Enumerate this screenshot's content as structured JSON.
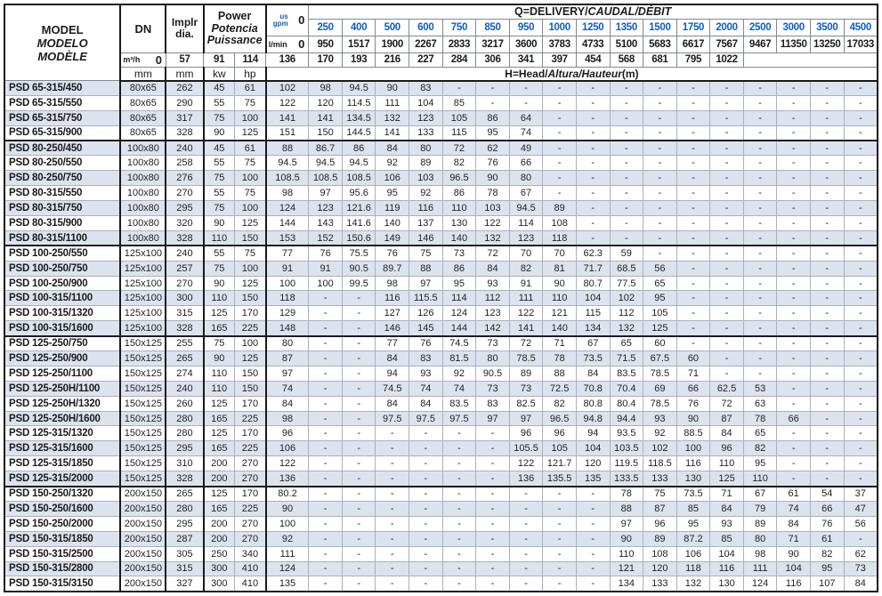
{
  "colors": {
    "accent_blue": "#0e5ec2",
    "stripe": "#dde3ee",
    "grid_dark": "#1a1a1a",
    "grid_light": "#a9b0bf"
  },
  "table": {
    "header": {
      "model": {
        "line1": "MODEL",
        "line2": "MODELO",
        "line3": "MODÈLE"
      },
      "dn": {
        "label": "DN",
        "unit": "mm"
      },
      "impeller": {
        "label1": "Implr",
        "label2": "dia.",
        "unit": "mm"
      },
      "power": {
        "line1": "Power",
        "line2": "Potencia",
        "line3": "Puissance",
        "unit_kw": "kw",
        "unit_hp": "hp"
      },
      "q_title": {
        "plain": "Q=DELIVERY/",
        "italic": "CAUDAL/DÉBIT"
      },
      "h_title": {
        "plain": "H=Head/",
        "italic": "Altura/Hauteur",
        "suffix": "(m)"
      },
      "flow_units": [
        {
          "label": "us gpm",
          "zero": "0"
        },
        {
          "label": "l/min",
          "zero": "0"
        },
        {
          "label": "m³/h",
          "zero": "0"
        }
      ]
    },
    "flow_columns": {
      "us_gpm": [
        "250",
        "400",
        "500",
        "600",
        "750",
        "850",
        "950",
        "1000",
        "1250",
        "1350",
        "1500",
        "1750",
        "2000",
        "2500",
        "3000",
        "3500",
        "4500"
      ],
      "l_min": [
        "950",
        "1517",
        "1900",
        "2267",
        "2833",
        "3217",
        "3600",
        "3783",
        "4733",
        "5100",
        "5683",
        "6617",
        "7567",
        "9467",
        "11350",
        "13250",
        "17033"
      ],
      "m3_h": [
        "57",
        "91",
        "114",
        "136",
        "170",
        "193",
        "216",
        "227",
        "284",
        "306",
        "341",
        "397",
        "454",
        "568",
        "681",
        "795",
        "1022"
      ]
    },
    "rows": [
      {
        "model": "PSD 65-315/450",
        "dn": "80x65",
        "dia": "262",
        "kw": "45",
        "hp": "61",
        "head": [
          "102",
          "98",
          "94.5",
          "90",
          "83",
          "-",
          "-",
          "-",
          "-",
          "-",
          "-",
          "-",
          "-",
          "-",
          "-",
          "-",
          "-",
          "-"
        ]
      },
      {
        "model": "PSD 65-315/550",
        "dn": "80x65",
        "dia": "290",
        "kw": "55",
        "hp": "75",
        "head": [
          "122",
          "120",
          "114.5",
          "111",
          "104",
          "85",
          "-",
          "-",
          "-",
          "-",
          "-",
          "-",
          "-",
          "-",
          "-",
          "-",
          "-",
          "-"
        ]
      },
      {
        "model": "PSD 65-315/750",
        "dn": "80x65",
        "dia": "317",
        "kw": "75",
        "hp": "100",
        "head": [
          "141",
          "141",
          "134.5",
          "132",
          "123",
          "105",
          "86",
          "64",
          "-",
          "-",
          "-",
          "-",
          "-",
          "-",
          "-",
          "-",
          "-",
          "-"
        ]
      },
      {
        "model": "PSD 65-315/900",
        "dn": "80x65",
        "dia": "328",
        "kw": "90",
        "hp": "125",
        "head": [
          "151",
          "150",
          "144.5",
          "141",
          "133",
          "115",
          "95",
          "74",
          "-",
          "-",
          "-",
          "-",
          "-",
          "-",
          "-",
          "-",
          "-",
          "-"
        ]
      },
      {
        "model": "PSD 80-250/450",
        "dn": "100x80",
        "dia": "240",
        "kw": "45",
        "hp": "61",
        "group_start": true,
        "head": [
          "88",
          "86.7",
          "86",
          "84",
          "80",
          "72",
          "62",
          "49",
          "-",
          "-",
          "-",
          "-",
          "-",
          "-",
          "-",
          "-",
          "-",
          "-"
        ]
      },
      {
        "model": "PSD 80-250/550",
        "dn": "100x80",
        "dia": "258",
        "kw": "55",
        "hp": "75",
        "head": [
          "94.5",
          "94.5",
          "94.5",
          "92",
          "89",
          "82",
          "76",
          "66",
          "-",
          "-",
          "-",
          "-",
          "-",
          "-",
          "-",
          "-",
          "-",
          "-"
        ]
      },
      {
        "model": "PSD 80-250/750",
        "dn": "100x80",
        "dia": "276",
        "kw": "75",
        "hp": "100",
        "head": [
          "108.5",
          "108.5",
          "108.5",
          "106",
          "103",
          "96.5",
          "90",
          "80",
          "-",
          "-",
          "-",
          "-",
          "-",
          "-",
          "-",
          "-",
          "-",
          "-"
        ]
      },
      {
        "model": "PSD 80-315/550",
        "dn": "100x80",
        "dia": "270",
        "kw": "55",
        "hp": "75",
        "head": [
          "98",
          "97",
          "95.6",
          "95",
          "92",
          "86",
          "78",
          "67",
          "-",
          "-",
          "-",
          "-",
          "-",
          "-",
          "-",
          "-",
          "-",
          "-"
        ]
      },
      {
        "model": "PSD 80-315/750",
        "dn": "100x80",
        "dia": "295",
        "kw": "75",
        "hp": "100",
        "head": [
          "124",
          "123",
          "121.6",
          "119",
          "116",
          "110",
          "103",
          "94.5",
          "89",
          "-",
          "-",
          "-",
          "-",
          "-",
          "-",
          "-",
          "-",
          "-"
        ]
      },
      {
        "model": "PSD 80-315/900",
        "dn": "100x80",
        "dia": "320",
        "kw": "90",
        "hp": "125",
        "head": [
          "144",
          "143",
          "141.6",
          "140",
          "137",
          "130",
          "122",
          "114",
          "108",
          "-",
          "-",
          "-",
          "-",
          "-",
          "-",
          "-",
          "-",
          "-"
        ]
      },
      {
        "model": "PSD 80-315/1100",
        "dn": "100x80",
        "dia": "328",
        "kw": "110",
        "hp": "150",
        "head": [
          "153",
          "152",
          "150.6",
          "149",
          "146",
          "140",
          "132",
          "123",
          "118",
          "-",
          "-",
          "-",
          "-",
          "-",
          "-",
          "-",
          "-",
          "-"
        ]
      },
      {
        "model": "PSD 100-250/550",
        "dn": "125x100",
        "dia": "240",
        "kw": "55",
        "hp": "75",
        "group_start": true,
        "head": [
          "77",
          "76",
          "75.5",
          "76",
          "75",
          "73",
          "72",
          "70",
          "70",
          "62.3",
          "59",
          "-",
          "-",
          "-",
          "-",
          "-",
          "-",
          "-"
        ]
      },
      {
        "model": "PSD 100-250/750",
        "dn": "125x100",
        "dia": "257",
        "kw": "75",
        "hp": "100",
        "head": [
          "91",
          "91",
          "90.5",
          "89.7",
          "88",
          "86",
          "84",
          "82",
          "81",
          "71.7",
          "68.5",
          "56",
          "-",
          "-",
          "-",
          "-",
          "-",
          "-"
        ]
      },
      {
        "model": "PSD 100-250/900",
        "dn": "125x100",
        "dia": "270",
        "kw": "90",
        "hp": "125",
        "head": [
          "100",
          "100",
          "99.5",
          "98",
          "97",
          "95",
          "93",
          "91",
          "90",
          "80.7",
          "77.5",
          "65",
          "-",
          "-",
          "-",
          "-",
          "-",
          "-"
        ]
      },
      {
        "model": "PSD 100-315/1100",
        "dn": "125x100",
        "dia": "300",
        "kw": "110",
        "hp": "150",
        "head": [
          "118",
          "-",
          "-",
          "116",
          "115.5",
          "114",
          "112",
          "111",
          "110",
          "104",
          "102",
          "95",
          "-",
          "-",
          "-",
          "-",
          "-",
          "-"
        ]
      },
      {
        "model": "PSD 100-315/1320",
        "dn": "125x100",
        "dia": "315",
        "kw": "125",
        "hp": "170",
        "head": [
          "129",
          "-",
          "-",
          "127",
          "126",
          "124",
          "123",
          "122",
          "121",
          "115",
          "112",
          "105",
          "-",
          "-",
          "-",
          "-",
          "-",
          "-"
        ]
      },
      {
        "model": "PSD 100-315/1600",
        "dn": "125x100",
        "dia": "328",
        "kw": "165",
        "hp": "225",
        "head": [
          "148",
          "-",
          "-",
          "146",
          "145",
          "144",
          "142",
          "141",
          "140",
          "134",
          "132",
          "125",
          "-",
          "-",
          "-",
          "-",
          "-",
          "-"
        ]
      },
      {
        "model": "PSD 125-250/750",
        "dn": "150x125",
        "dia": "255",
        "kw": "75",
        "hp": "100",
        "group_start": true,
        "head": [
          "80",
          "-",
          "-",
          "77",
          "76",
          "74.5",
          "73",
          "72",
          "71",
          "67",
          "65",
          "60",
          "-",
          "-",
          "-",
          "-",
          "-",
          "-"
        ]
      },
      {
        "model": "PSD 125-250/900",
        "dn": "150x125",
        "dia": "265",
        "kw": "90",
        "hp": "125",
        "head": [
          "87",
          "-",
          "-",
          "84",
          "83",
          "81.5",
          "80",
          "78.5",
          "78",
          "73.5",
          "71.5",
          "67.5",
          "60",
          "-",
          "-",
          "-",
          "-",
          "-"
        ]
      },
      {
        "model": "PSD 125-250/1100",
        "dn": "150x125",
        "dia": "274",
        "kw": "110",
        "hp": "150",
        "head": [
          "97",
          "-",
          "-",
          "94",
          "93",
          "92",
          "90.5",
          "89",
          "88",
          "84",
          "83.5",
          "78.5",
          "71",
          "-",
          "-",
          "-",
          "-",
          "-"
        ]
      },
      {
        "model": "PSD 125-250H/1100",
        "dn": "150x125",
        "dia": "240",
        "kw": "110",
        "hp": "150",
        "head": [
          "74",
          "-",
          "-",
          "74.5",
          "74",
          "74",
          "73",
          "73",
          "72.5",
          "70.8",
          "70.4",
          "69",
          "66",
          "62.5",
          "53",
          "-",
          "-",
          "-"
        ]
      },
      {
        "model": "PSD 125-250H/1320",
        "dn": "150x125",
        "dia": "260",
        "kw": "125",
        "hp": "170",
        "head": [
          "84",
          "-",
          "-",
          "84",
          "84",
          "83.5",
          "83",
          "82.5",
          "82",
          "80.8",
          "80.4",
          "78.5",
          "76",
          "72",
          "63",
          "-",
          "-",
          "-"
        ]
      },
      {
        "model": "PSD 125-250H/1600",
        "dn": "150x125",
        "dia": "280",
        "kw": "165",
        "hp": "225",
        "head": [
          "98",
          "-",
          "-",
          "97.5",
          "97.5",
          "97.5",
          "97",
          "97",
          "96.5",
          "94.8",
          "94.4",
          "93",
          "90",
          "87",
          "78",
          "66",
          "-",
          "-"
        ]
      },
      {
        "model": "PSD 125-315/1320",
        "dn": "150x125",
        "dia": "280",
        "kw": "125",
        "hp": "170",
        "head": [
          "96",
          "-",
          "-",
          "-",
          "-",
          "-",
          "-",
          "96",
          "96",
          "94",
          "93.5",
          "92",
          "88.5",
          "84",
          "65",
          "-",
          "-",
          "-"
        ]
      },
      {
        "model": "PSD 125-315/1600",
        "dn": "150x125",
        "dia": "295",
        "kw": "165",
        "hp": "225",
        "head": [
          "106",
          "-",
          "-",
          "-",
          "-",
          "-",
          "-",
          "105.5",
          "105",
          "104",
          "103.5",
          "102",
          "100",
          "96",
          "82",
          "-",
          "-",
          "-"
        ]
      },
      {
        "model": "PSD 125-315/1850",
        "dn": "150x125",
        "dia": "310",
        "kw": "200",
        "hp": "270",
        "head": [
          "122",
          "-",
          "-",
          "-",
          "-",
          "-",
          "-",
          "122",
          "121.7",
          "120",
          "119.5",
          "118.5",
          "116",
          "110",
          "95",
          "-",
          "-",
          "-"
        ]
      },
      {
        "model": "PSD 125-315/2000",
        "dn": "150x125",
        "dia": "328",
        "kw": "200",
        "hp": "270",
        "head": [
          "136",
          "-",
          "-",
          "-",
          "-",
          "-",
          "-",
          "136",
          "135.5",
          "135",
          "133.5",
          "133",
          "130",
          "125",
          "110",
          "-",
          "-",
          "-"
        ]
      },
      {
        "model": "PSD 150-250/1320",
        "dn": "200x150",
        "dia": "265",
        "kw": "125",
        "hp": "170",
        "group_start": true,
        "head": [
          "80.2",
          "-",
          "-",
          "-",
          "-",
          "-",
          "-",
          "-",
          "-",
          "-",
          "78",
          "75",
          "73.5",
          "71",
          "67",
          "61",
          "54",
          "37"
        ]
      },
      {
        "model": "PSD 150-250/1600",
        "dn": "200x150",
        "dia": "280",
        "kw": "165",
        "hp": "225",
        "head": [
          "90",
          "-",
          "-",
          "-",
          "-",
          "-",
          "-",
          "-",
          "-",
          "-",
          "88",
          "87",
          "85",
          "84",
          "79",
          "74",
          "66",
          "47"
        ]
      },
      {
        "model": "PSD 150-250/2000",
        "dn": "200x150",
        "dia": "295",
        "kw": "200",
        "hp": "270",
        "head": [
          "100",
          "-",
          "-",
          "-",
          "-",
          "-",
          "-",
          "-",
          "-",
          "-",
          "97",
          "96",
          "95",
          "93",
          "89",
          "84",
          "76",
          "56"
        ]
      },
      {
        "model": "PSD 150-315/1850",
        "dn": "200x150",
        "dia": "287",
        "kw": "200",
        "hp": "270",
        "head": [
          "92",
          "-",
          "-",
          "-",
          "-",
          "-",
          "-",
          "-",
          "-",
          "-",
          "90",
          "89",
          "87.2",
          "85",
          "80",
          "71",
          "61",
          "-"
        ]
      },
      {
        "model": "PSD 150-315/2500",
        "dn": "200x150",
        "dia": "305",
        "kw": "250",
        "hp": "340",
        "head": [
          "111",
          "-",
          "-",
          "-",
          "-",
          "-",
          "-",
          "-",
          "-",
          "-",
          "110",
          "108",
          "106",
          "104",
          "98",
          "90",
          "82",
          "62"
        ]
      },
      {
        "model": "PSD 150-315/2800",
        "dn": "200x150",
        "dia": "315",
        "kw": "300",
        "hp": "410",
        "head": [
          "124",
          "-",
          "-",
          "-",
          "-",
          "-",
          "-",
          "-",
          "-",
          "-",
          "121",
          "120",
          "118",
          "116",
          "111",
          "104",
          "95",
          "73"
        ]
      },
      {
        "model": "PSD 150-315/3150",
        "dn": "200x150",
        "dia": "327",
        "kw": "300",
        "hp": "410",
        "head": [
          "135",
          "-",
          "-",
          "-",
          "-",
          "-",
          "-",
          "-",
          "-",
          "-",
          "134",
          "133",
          "132",
          "130",
          "124",
          "116",
          "107",
          "84"
        ]
      }
    ]
  }
}
